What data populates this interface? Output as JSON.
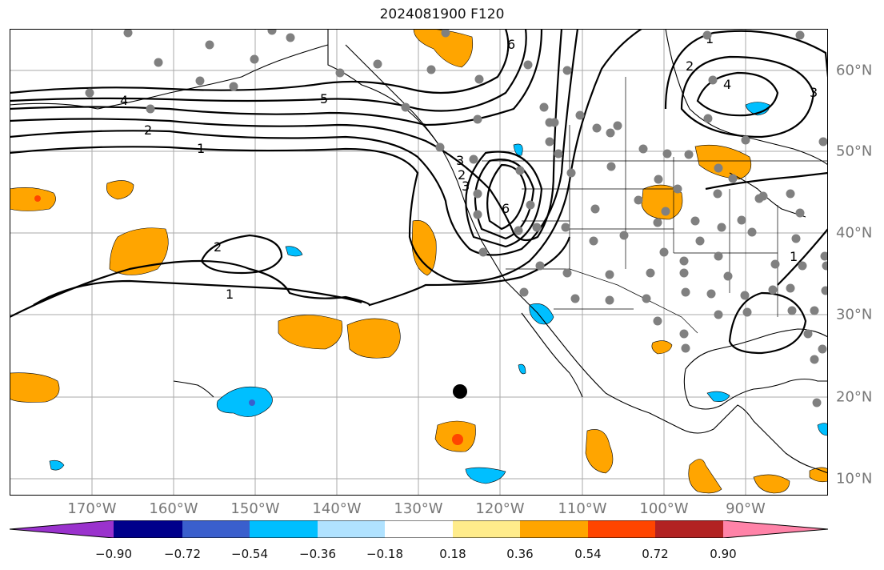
{
  "title": "2024081900 F120",
  "lon_labels": [
    "170°W",
    "160°W",
    "150°W",
    "140°W",
    "130°W",
    "120°W",
    "110°W",
    "100°W",
    "90°W"
  ],
  "lat_labels": [
    "60°N",
    "50°N",
    "40°N",
    "30°N",
    "20°N",
    "10°N"
  ],
  "contour_labels": [
    "6",
    "5",
    "4",
    "3",
    "2",
    "1",
    "2",
    "1",
    "6",
    "3",
    "2",
    "1",
    "2",
    "4",
    "3",
    "1"
  ],
  "colorbar": {
    "ticks": [
      "−0.90",
      "−0.72",
      "−0.54",
      "−0.36",
      "−0.18",
      "0.18",
      "0.36",
      "0.54",
      "0.72",
      "0.90"
    ],
    "colors": [
      "#9a32cd",
      "#00008b",
      "#3a5fcd",
      "#00bfff",
      "#b0e2ff",
      "#ffffff",
      "#ffec8b",
      "#ffa500",
      "#ff4500",
      "#b22222",
      "#ff83a8"
    ]
  }
}
